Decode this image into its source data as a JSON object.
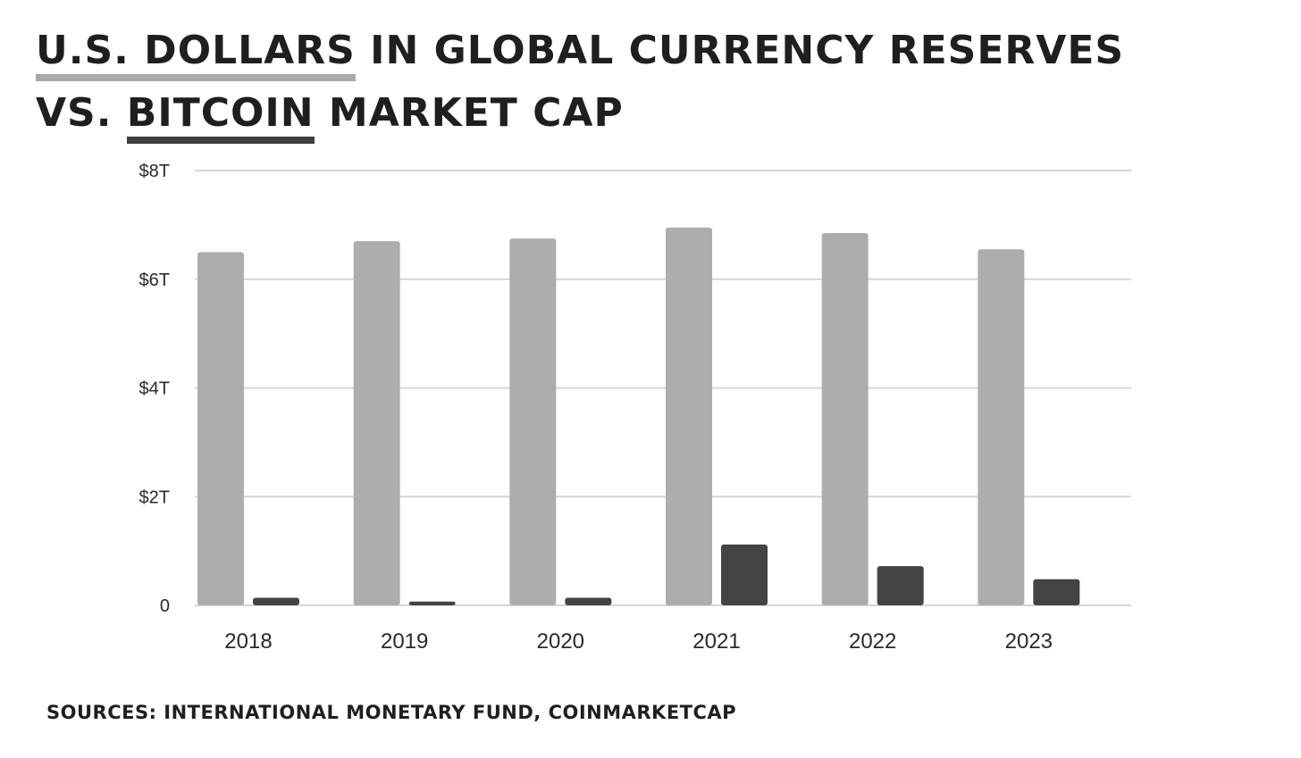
{
  "title": {
    "line1": {
      "part1": "U.S. DOLLARS",
      "part2": " IN GLOBAL CURRENCY RESERVES"
    },
    "line2": {
      "part1": "VS. ",
      "part2": "BITCOIN",
      "part3": " MARKET CAP"
    }
  },
  "source": "SOURCES: INTERNATIONAL MONETARY FUND, COINMARKETCAP",
  "colors": {
    "usd": "#adadab",
    "btc": "#434343",
    "grid": "#d6d6d6"
  },
  "chart_data": {
    "type": "bar",
    "title": "U.S. DOLLARS IN GLOBAL CURRENCY RESERVES VS. BITCOIN MARKET CAP",
    "categories": [
      "2018",
      "2019",
      "2020",
      "2021",
      "2022",
      "2023"
    ],
    "series": [
      {
        "values": [
          6.5,
          6.7,
          6.75,
          6.95,
          6.85,
          6.55
        ]
      },
      {
        "values": [
          0.14,
          0.07,
          0.14,
          1.12,
          0.72,
          0.48
        ]
      }
    ],
    "yticks": [
      0,
      2,
      4,
      6,
      8
    ],
    "ytick_labels": [
      "0",
      "$2T",
      "$4T",
      "$6T",
      "$8T"
    ],
    "ylim": [
      0,
      8
    ],
    "unit": "trillions USD",
    "grid": true,
    "legend": "none"
  }
}
